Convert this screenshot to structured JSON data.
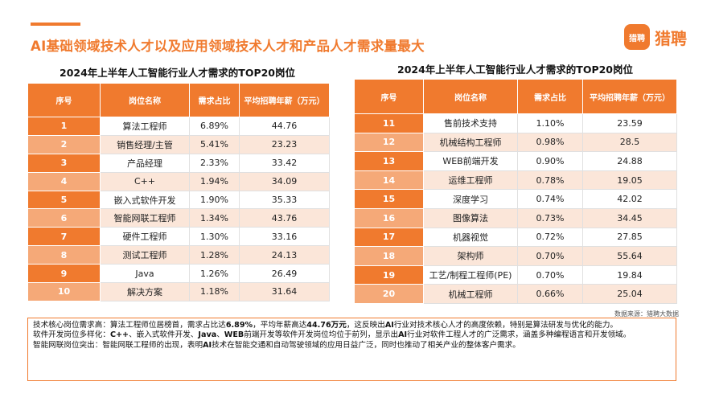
{
  "header": {
    "title": "AI基础领域技术人才以及应用领域技术人才和产品人才需求量最大",
    "logo_badge": "猎聘",
    "logo_text": "猎聘"
  },
  "table_left": {
    "title": "2024年上半年人工智能行业人才需求的TOP20岗位",
    "columns": [
      "序号",
      "岗位名称",
      "需求占比",
      "平均招聘年薪（万元）"
    ],
    "rows": [
      [
        "1",
        "算法工程师",
        "6.89%",
        "44.76"
      ],
      [
        "2",
        "销售经理/主管",
        "5.41%",
        "23.23"
      ],
      [
        "3",
        "产品经理",
        "2.33%",
        "33.42"
      ],
      [
        "4",
        "C++",
        "1.94%",
        "34.09"
      ],
      [
        "5",
        "嵌入式软件开发",
        "1.90%",
        "35.33"
      ],
      [
        "6",
        "智能网联工程师",
        "1.34%",
        "43.76"
      ],
      [
        "7",
        "硬件工程师",
        "1.30%",
        "33.16"
      ],
      [
        "8",
        "测试工程师",
        "1.28%",
        "24.13"
      ],
      [
        "9",
        "Java",
        "1.26%",
        "26.49"
      ],
      [
        "10",
        "解决方案",
        "1.18%",
        "31.64"
      ]
    ]
  },
  "table_right": {
    "title": "2024年上半年人工智能行业人才需求的TOP20岗位",
    "columns": [
      "序号",
      "岗位名称",
      "需求占比",
      "平均招聘年薪（万元）"
    ],
    "rows": [
      [
        "11",
        "售前技术支持",
        "1.10%",
        "23.59"
      ],
      [
        "12",
        "机械结构工程师",
        "0.98%",
        "28.5"
      ],
      [
        "13",
        "WEB前端开发",
        "0.90%",
        "24.88"
      ],
      [
        "14",
        "运维工程师",
        "0.78%",
        "19.05"
      ],
      [
        "15",
        "深度学习",
        "0.74%",
        "42.02"
      ],
      [
        "16",
        "图像算法",
        "0.73%",
        "34.45"
      ],
      [
        "17",
        "机器视觉",
        "0.72%",
        "27.85"
      ],
      [
        "18",
        "架构师",
        "0.70%",
        "55.64"
      ],
      [
        "19",
        "工艺/制程工程师(PE)",
        "0.70%",
        "19.84"
      ],
      [
        "20",
        "机械工程师",
        "0.66%",
        "25.04"
      ]
    ]
  },
  "source": "数据来源：猎聘大数据",
  "summary": {
    "p1_a": "技术核心岗位需求高：算法工程师位居榜首，需求占比达",
    "p1_b": "6.89%",
    "p1_c": "，平均年薪高达",
    "p1_d": "44.76万元",
    "p1_e": "，这反映出",
    "p1_f": "AI",
    "p1_g": "行业对技术核心人才的高度依赖，特别是算法研发与优化的能力。",
    "p2_a": "软件开发岗位多样化：",
    "p2_b": "C++",
    "p2_c": "、嵌入式软件开发、",
    "p2_d": "Java",
    "p2_e": "、",
    "p2_f": "WEB",
    "p2_g": "前端开发等软件开发岗位均位于前列，显示出",
    "p2_h": "AI",
    "p2_i": "行业对软件工程人才的广泛需求，涵盖多种编程语言和开发领域。",
    "p3_a": "智能网联岗位突出：智能网联工程师的出现，表明",
    "p3_b": "AI",
    "p3_c": "技术在智能交通和自动驾驶领域的应用日益广泛，同时也推动了相关产业的整体客户需求。"
  }
}
